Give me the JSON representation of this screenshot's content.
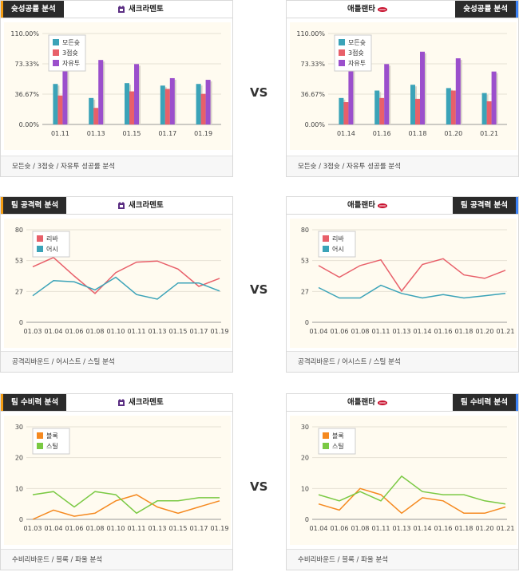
{
  "vs_label": "VS",
  "sections": [
    {
      "left": {
        "tab": "슛성공률 분석",
        "team": "새크라멘토",
        "footer": "모든슛 / 3점슛 / 자유투 성공률 분석",
        "chart_data": {
          "type": "bar",
          "categories": [
            "01.11",
            "01.13",
            "01.15",
            "01.17",
            "01.19"
          ],
          "yticks": [
            "110.00%",
            "73.33%",
            "36.67%",
            "0.00%"
          ],
          "ylim": [
            0,
            110
          ],
          "series": [
            {
              "name": "모든슛",
              "color": "#3ba3b8",
              "values": [
                49,
                32,
                50,
                47,
                49
              ]
            },
            {
              "name": "3점슛",
              "color": "#e8606a",
              "values": [
                35,
                20,
                40,
                43,
                37
              ]
            },
            {
              "name": "자유투",
              "color": "#9b4fcc",
              "values": [
                90,
                78,
                73,
                56,
                54
              ]
            }
          ]
        }
      },
      "right": {
        "tab": "슛성공률 분석",
        "team": "애틀랜타",
        "footer": "모든슛 / 3점슛 / 자유투 성공률 분석",
        "chart_data": {
          "type": "bar",
          "categories": [
            "01.14",
            "01.16",
            "01.18",
            "01.20",
            "01.21"
          ],
          "yticks": [
            "110.00%",
            "73.33%",
            "36.67%",
            "0.00%"
          ],
          "ylim": [
            0,
            110
          ],
          "series": [
            {
              "name": "모든슛",
              "color": "#3ba3b8",
              "values": [
                32,
                41,
                48,
                44,
                38
              ]
            },
            {
              "name": "3점슛",
              "color": "#e8606a",
              "values": [
                27,
                32,
                31,
                41,
                28
              ]
            },
            {
              "name": "자유투",
              "color": "#9b4fcc",
              "values": [
                85,
                73,
                88,
                80,
                64
              ]
            }
          ]
        }
      }
    },
    {
      "left": {
        "tab": "팀 공격력 분석",
        "team": "새크라멘토",
        "footer": "공격리바운드 / 어시스트 / 스틸 분석",
        "chart_data": {
          "type": "line",
          "categories": [
            "01.03",
            "01.04",
            "01.06",
            "01.08",
            "01.10",
            "01.11",
            "01.13",
            "01.15",
            "01.17",
            "01.19"
          ],
          "yticks": [
            "80",
            "53",
            "27",
            "0"
          ],
          "ylim": [
            0,
            80
          ],
          "series": [
            {
              "name": "리바",
              "color": "#e8606a",
              "values": [
                48,
                56,
                40,
                25,
                43,
                52,
                53,
                46,
                31,
                38
              ]
            },
            {
              "name": "어시",
              "color": "#3ba3b8",
              "values": [
                23,
                36,
                35,
                28,
                39,
                24,
                20,
                34,
                34,
                27
              ]
            }
          ]
        }
      },
      "right": {
        "tab": "팀 공격력 분석",
        "team": "애틀랜타",
        "footer": "공격리바운드 / 어시스트 / 스틸 분석",
        "chart_data": {
          "type": "line",
          "categories": [
            "01.04",
            "01.06",
            "01.08",
            "01.11",
            "01.13",
            "01.14",
            "01.16",
            "01.18",
            "01.20",
            "01.21"
          ],
          "yticks": [
            "80",
            "53",
            "27",
            "0"
          ],
          "ylim": [
            0,
            80
          ],
          "series": [
            {
              "name": "리바",
              "color": "#e8606a",
              "values": [
                49,
                39,
                49,
                54,
                27,
                50,
                55,
                41,
                38,
                45
              ]
            },
            {
              "name": "어시",
              "color": "#3ba3b8",
              "values": [
                30,
                21,
                21,
                32,
                25,
                21,
                24,
                21,
                23,
                25
              ]
            }
          ]
        }
      }
    },
    {
      "left": {
        "tab": "팀 수비력 분석",
        "team": "새크라멘토",
        "footer": "수비리바운드 / 블록 / 파울 분석",
        "chart_data": {
          "type": "line",
          "categories": [
            "01.03",
            "01.04",
            "01.06",
            "01.08",
            "01.10",
            "01.11",
            "01.13",
            "01.15",
            "01.17",
            "01.19"
          ],
          "yticks": [
            "30",
            "20",
            "10",
            "0"
          ],
          "ylim": [
            0,
            30
          ],
          "series": [
            {
              "name": "블록",
              "color": "#f5891f",
              "values": [
                0,
                3,
                1,
                2,
                6,
                8,
                4,
                2,
                4,
                6
              ]
            },
            {
              "name": "스틸",
              "color": "#7ac943",
              "values": [
                8,
                9,
                4,
                9,
                8,
                2,
                6,
                6,
                7,
                7
              ]
            }
          ]
        }
      },
      "right": {
        "tab": "팀 수비력 분석",
        "team": "애틀랜타",
        "footer": "수비리바운드 / 블록 / 파울 분석",
        "chart_data": {
          "type": "line",
          "categories": [
            "01.04",
            "01.06",
            "01.08",
            "01.11",
            "01.13",
            "01.14",
            "01.16",
            "01.18",
            "01.20",
            "01.21"
          ],
          "yticks": [
            "30",
            "20",
            "10",
            "0"
          ],
          "ylim": [
            0,
            30
          ],
          "series": [
            {
              "name": "블록",
              "color": "#f5891f",
              "values": [
                5,
                3,
                10,
                8,
                2,
                7,
                6,
                2,
                2,
                4
              ]
            },
            {
              "name": "스틸",
              "color": "#7ac943",
              "values": [
                8,
                6,
                9,
                6,
                14,
                9,
                8,
                8,
                6,
                5
              ]
            }
          ]
        }
      }
    }
  ]
}
